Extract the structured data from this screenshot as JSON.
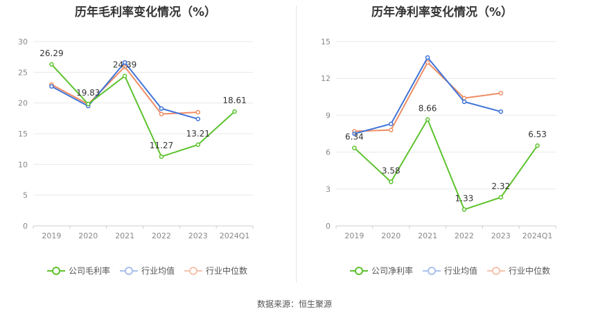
{
  "source_label": "数据来源：恒生聚源",
  "chart_data": [
    {
      "type": "line",
      "title": "历年毛利率变化情况（%）",
      "categories": [
        "2019",
        "2020",
        "2021",
        "2022",
        "2023",
        "2024Q1"
      ],
      "ylim": [
        0,
        30
      ],
      "yticks": [
        0,
        5,
        10,
        15,
        20,
        25,
        30
      ],
      "series": [
        {
          "name": "公司毛利率",
          "color": "#5cc22d",
          "values": [
            26.29,
            19.83,
            24.39,
            11.27,
            13.21,
            18.61
          ],
          "labels": [
            "26.29",
            "19.83",
            "24.39",
            "11.27",
            "13.21",
            "18.61"
          ]
        },
        {
          "name": "行业均值",
          "color": "#3e73d8",
          "values": [
            22.7,
            19.5,
            26.6,
            19.1,
            17.4,
            null
          ]
        },
        {
          "name": "行业中位数",
          "color": "#ee8c63",
          "values": [
            23.0,
            19.8,
            25.9,
            18.2,
            18.5,
            null
          ]
        }
      ]
    },
    {
      "type": "line",
      "title": "历年净利率变化情况（%）",
      "categories": [
        "2019",
        "2020",
        "2021",
        "2022",
        "2023",
        "2024Q1"
      ],
      "ylim": [
        0,
        15
      ],
      "yticks": [
        0,
        3,
        6,
        9,
        12,
        15
      ],
      "series": [
        {
          "name": "公司净利率",
          "color": "#5cc22d",
          "values": [
            6.34,
            3.58,
            8.66,
            1.33,
            2.32,
            6.53
          ],
          "labels": [
            "6.34",
            "3.58",
            "8.66",
            "1.33",
            "2.32",
            "6.53"
          ]
        },
        {
          "name": "行业均值",
          "color": "#3e73d8",
          "values": [
            7.5,
            8.3,
            13.7,
            10.1,
            9.3,
            null
          ]
        },
        {
          "name": "行业中位数",
          "color": "#ee8c63",
          "values": [
            7.7,
            7.8,
            13.3,
            10.4,
            10.8,
            null
          ]
        }
      ]
    }
  ]
}
